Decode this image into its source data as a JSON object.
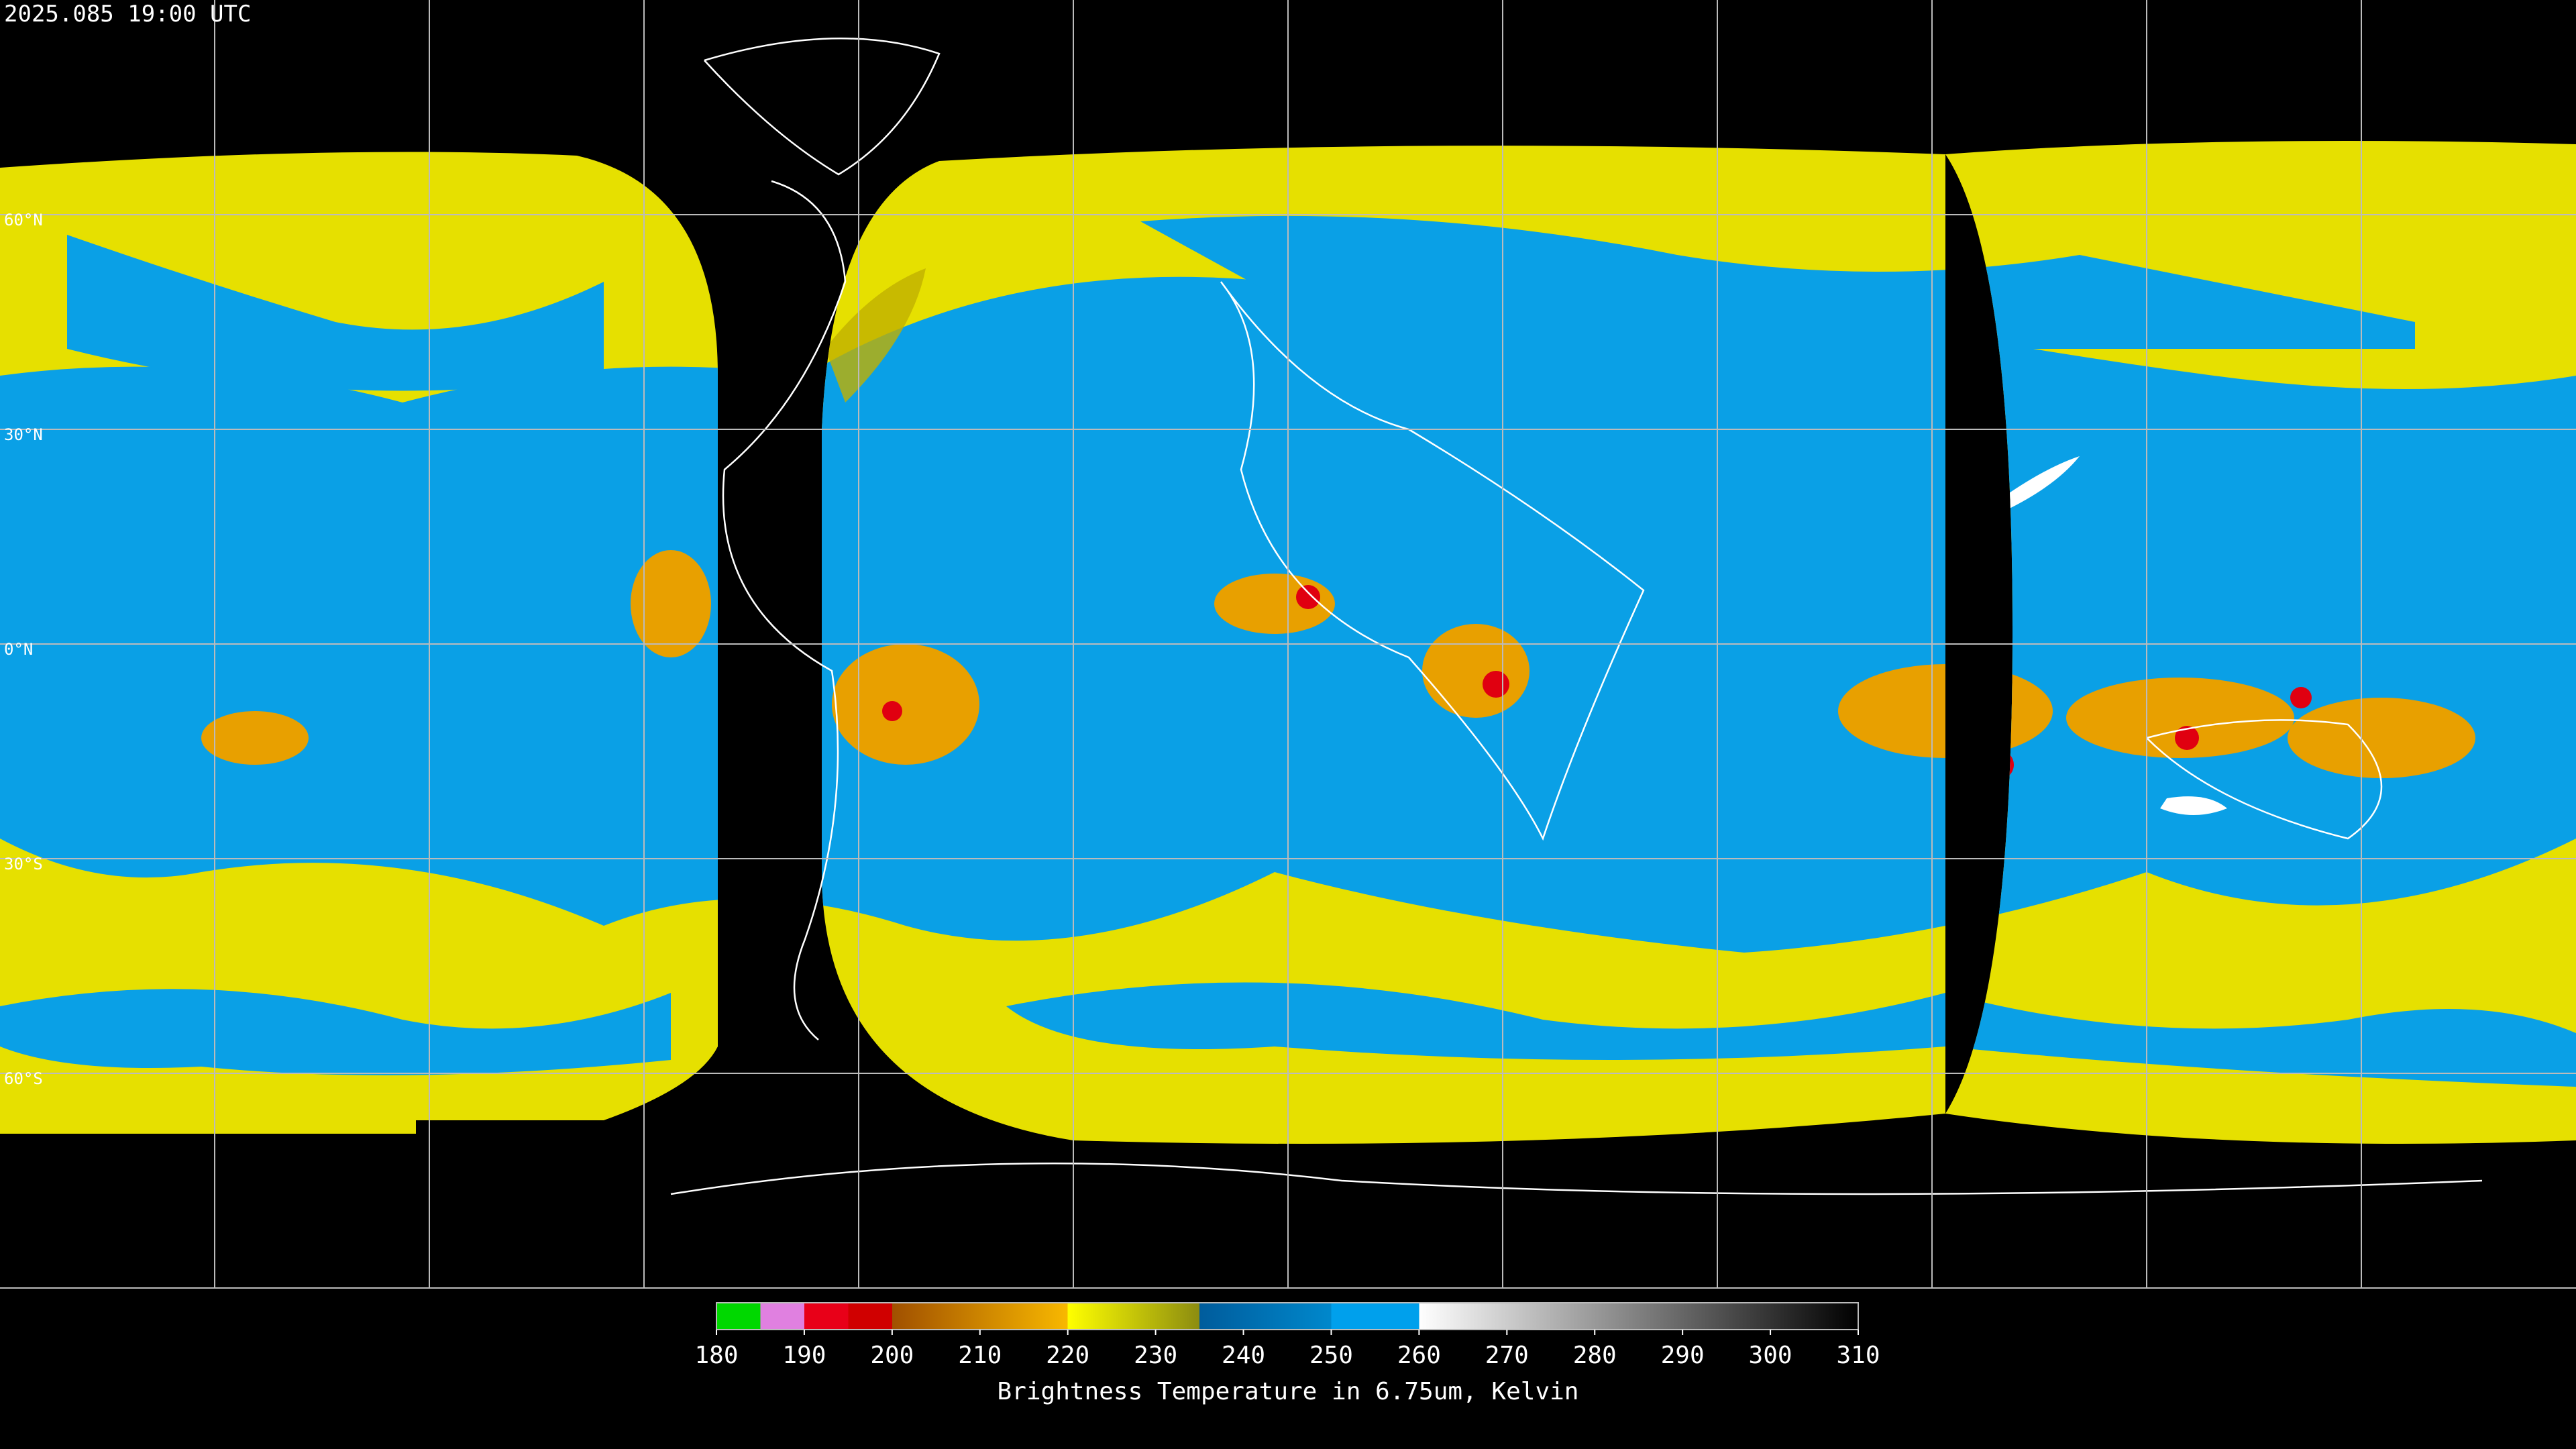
{
  "header": {
    "timestamp": "2025.085 19:00 UTC"
  },
  "latitudes": [
    {
      "value": 60,
      "label": "60°N"
    },
    {
      "value": 30,
      "label": "30°N"
    },
    {
      "value": 0,
      "label": "0°N"
    },
    {
      "value": -30,
      "label": "30°S"
    },
    {
      "value": -60,
      "label": "60°S"
    }
  ],
  "colorbar": {
    "ticks": [
      180,
      190,
      200,
      210,
      220,
      230,
      240,
      250,
      260,
      270,
      280,
      290,
      300,
      310
    ],
    "label": "Brightness Temperature in 6.75um, Kelvin",
    "stops": [
      {
        "value": 180,
        "color": "#00d800"
      },
      {
        "value": 185,
        "color": "#00d800"
      },
      {
        "value": 185,
        "color": "#e080e0"
      },
      {
        "value": 190,
        "color": "#e080e0"
      },
      {
        "value": 190,
        "color": "#e80018"
      },
      {
        "value": 195,
        "color": "#e80018"
      },
      {
        "value": 195,
        "color": "#d00000"
      },
      {
        "value": 200,
        "color": "#d00000"
      },
      {
        "value": 200,
        "color": "#a05000"
      },
      {
        "value": 220,
        "color": "#f8b800"
      },
      {
        "value": 220,
        "color": "#ffff00"
      },
      {
        "value": 235,
        "color": "#8c8c10"
      },
      {
        "value": 235,
        "color": "#005c9c"
      },
      {
        "value": 250,
        "color": "#0088cc"
      },
      {
        "value": 250,
        "color": "#00a0ec"
      },
      {
        "value": 260,
        "color": "#00a0ec"
      },
      {
        "value": 260,
        "color": "#ffffff"
      },
      {
        "value": 310,
        "color": "#000000"
      }
    ]
  }
}
